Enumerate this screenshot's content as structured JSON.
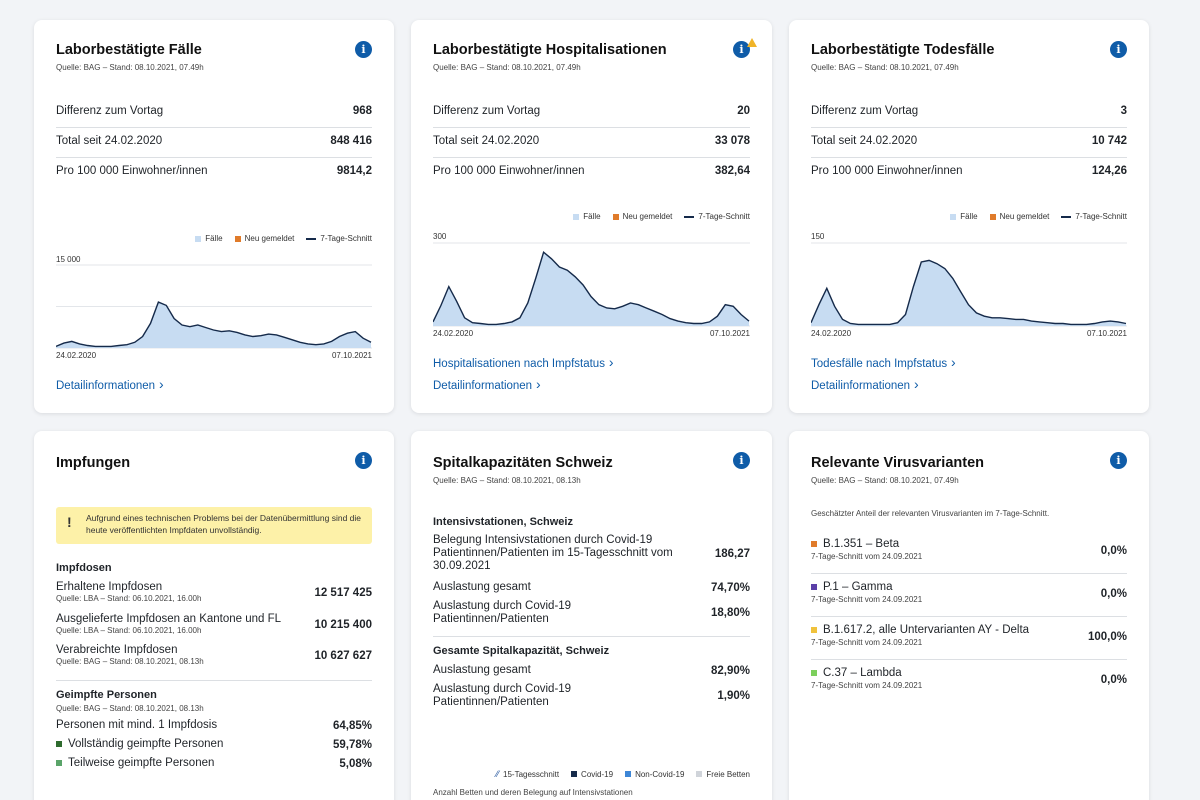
{
  "cards": {
    "cases": {
      "title": "Laborbestätigte Fälle",
      "source": "Quelle: BAG – Stand: 08.10.2021, 07.49h",
      "rows": [
        {
          "label": "Differenz zum Vortag",
          "value": "968"
        },
        {
          "label": "Total seit 24.02.2020",
          "value": "848 416"
        },
        {
          "label": "Pro 100 000 Einwohner/innen",
          "value": "9814,2"
        }
      ],
      "legend": {
        "cases": "Fälle",
        "new": "Neu gemeldet",
        "avg": "7-Tage-Schnitt"
      },
      "y_max_label": "15 000",
      "x_start": "24.02.2020",
      "x_end": "07.10.2021",
      "link_details": "Detailinformationen"
    },
    "hosp": {
      "title": "Laborbestätigte Hospitalisationen",
      "source": "Quelle: BAG – Stand: 08.10.2021, 07.49h",
      "rows": [
        {
          "label": "Differenz zum Vortag",
          "value": "20"
        },
        {
          "label": "Total seit 24.02.2020",
          "value": "33 078"
        },
        {
          "label": "Pro 100 000 Einwohner/innen",
          "value": "382,64"
        }
      ],
      "legend": {
        "cases": "Fälle",
        "new": "Neu gemeldet",
        "avg": "7-Tage-Schnitt"
      },
      "y_max_label": "300",
      "x_start": "24.02.2020",
      "x_end": "07.10.2021",
      "link_vacc": "Hospitalisationen nach Impfstatus",
      "link_details": "Detailinformationen"
    },
    "deaths": {
      "title": "Laborbestätigte Todesfälle",
      "source": "Quelle: BAG – Stand: 08.10.2021, 07.49h",
      "rows": [
        {
          "label": "Differenz zum Vortag",
          "value": "3"
        },
        {
          "label": "Total seit 24.02.2020",
          "value": "10 742"
        },
        {
          "label": "Pro 100 000 Einwohner/innen",
          "value": "124,26"
        }
      ],
      "legend": {
        "cases": "Fälle",
        "new": "Neu gemeldet",
        "avg": "7-Tage-Schnitt"
      },
      "y_max_label": "150",
      "x_start": "24.02.2020",
      "x_end": "07.10.2021",
      "link_vacc": "Todesfälle nach Impfstatus",
      "link_details": "Detailinformationen"
    },
    "vacc": {
      "title": "Impfungen",
      "alert": "Aufgrund eines technischen Problems bei der Datenübermittlung sind die heute veröffentlichten Impfdaten unvollständig.",
      "doses_heading": "Impfdosen",
      "doses": [
        {
          "label": "Erhaltene Impfdosen",
          "source": "Quelle: LBA – Stand: 06.10.2021, 16.00h",
          "value": "12 517 425"
        },
        {
          "label": "Ausgelieferte Impfdosen an Kantone und FL",
          "source": "Quelle: LBA – Stand: 06.10.2021, 16.00h",
          "value": "10 215 400"
        },
        {
          "label": "Verabreichte Impfdosen",
          "source": "Quelle: BAG – Stand: 08.10.2021, 08.13h",
          "value": "10 627 627"
        }
      ],
      "persons_heading": "Geimpfte Personen",
      "persons_source": "Quelle: BAG – Stand: 08.10.2021, 08.13h",
      "persons": [
        {
          "label": "Personen mit mind. 1 Impfdosis",
          "value": "64,85%"
        },
        {
          "label": "Vollständig geimpfte Personen",
          "value": "59,78%",
          "color": "#2e6b2e"
        },
        {
          "label": "Teilweise geimpfte Personen",
          "value": "5,08%",
          "color": "#5aa469"
        }
      ]
    },
    "hospital": {
      "title": "Spitalkapazitäten Schweiz",
      "source": "Quelle: BAG – Stand: 08.10.2021, 08.13h",
      "icu_heading": "Intensivstationen, Schweiz",
      "icu": [
        {
          "label": "Belegung Intensivstationen durch Covid-19 Patientinnen/Patienten im 15-Tagesschnitt vom 30.09.2021",
          "value": "186,27"
        },
        {
          "label": "Auslastung gesamt",
          "value": "74,70%"
        },
        {
          "label": "Auslastung durch Covid-19 Patientinnen/Patienten",
          "value": "18,80%"
        }
      ],
      "total_heading": "Gesamte Spitalkapazität, Schweiz",
      "total": [
        {
          "label": "Auslastung gesamt",
          "value": "82,90%"
        },
        {
          "label": "Auslastung durch Covid-19 Patientinnen/Patienten",
          "value": "1,90%"
        }
      ],
      "legend": {
        "avg15": "15-Tagesschnitt",
        "covid": "Covid-19",
        "noncovid": "Non-Covid-19",
        "free": "Freie Betten"
      },
      "chart_caption": "Anzahl Betten und deren Belegung auf Intensivstationen"
    },
    "variants": {
      "title": "Relevante Virusvarianten",
      "source": "Quelle: BAG – Stand: 08.10.2021, 07.49h",
      "description": "Geschätzter Anteil der relevanten Virusvarianten im 7-Tage-Schnitt.",
      "items": [
        {
          "name": "B.1.351 – Beta",
          "date": "7-Tage-Schnitt vom 24.09.2021",
          "value": "0,0%",
          "color": "#e07b2a"
        },
        {
          "name": "P.1 – Gamma",
          "date": "7-Tage-Schnitt vom 24.09.2021",
          "value": "0,0%",
          "color": "#5b3fa8"
        },
        {
          "name": "B.1.617.2, alle Untervarianten AY - Delta",
          "date": "7-Tage-Schnitt vom 24.09.2021",
          "value": "100,0%",
          "color": "#f0c23c"
        },
        {
          "name": "C.37 – Lambda",
          "date": "7-Tage-Schnitt vom 24.09.2021",
          "value": "0,0%",
          "color": "#7ccf5c"
        }
      ]
    }
  },
  "colors": {
    "accent": "#0f5ca8",
    "bars": "#c7dcf2",
    "new": "#e07b2a",
    "line": "#152a4a"
  },
  "series": {
    "cases": [
      0.02,
      0.06,
      0.08,
      0.05,
      0.03,
      0.02,
      0.02,
      0.02,
      0.03,
      0.04,
      0.07,
      0.14,
      0.3,
      0.56,
      0.52,
      0.36,
      0.28,
      0.26,
      0.28,
      0.25,
      0.22,
      0.2,
      0.21,
      0.19,
      0.16,
      0.14,
      0.15,
      0.17,
      0.16,
      0.13,
      0.1,
      0.07,
      0.05,
      0.04,
      0.05,
      0.08,
      0.14,
      0.18,
      0.2,
      0.12,
      0.07
    ],
    "hosp": [
      0.05,
      0.25,
      0.48,
      0.3,
      0.1,
      0.04,
      0.03,
      0.02,
      0.02,
      0.03,
      0.05,
      0.1,
      0.28,
      0.58,
      0.9,
      0.82,
      0.72,
      0.68,
      0.6,
      0.5,
      0.36,
      0.26,
      0.22,
      0.21,
      0.24,
      0.28,
      0.26,
      0.22,
      0.18,
      0.14,
      0.09,
      0.06,
      0.04,
      0.03,
      0.03,
      0.05,
      0.12,
      0.26,
      0.24,
      0.14,
      0.06
    ],
    "deaths": [
      0.04,
      0.26,
      0.46,
      0.24,
      0.08,
      0.03,
      0.02,
      0.02,
      0.02,
      0.02,
      0.02,
      0.04,
      0.14,
      0.48,
      0.78,
      0.8,
      0.76,
      0.7,
      0.58,
      0.42,
      0.26,
      0.16,
      0.12,
      0.1,
      0.1,
      0.09,
      0.08,
      0.08,
      0.06,
      0.05,
      0.04,
      0.03,
      0.03,
      0.02,
      0.02,
      0.02,
      0.03,
      0.05,
      0.06,
      0.05,
      0.03
    ]
  }
}
